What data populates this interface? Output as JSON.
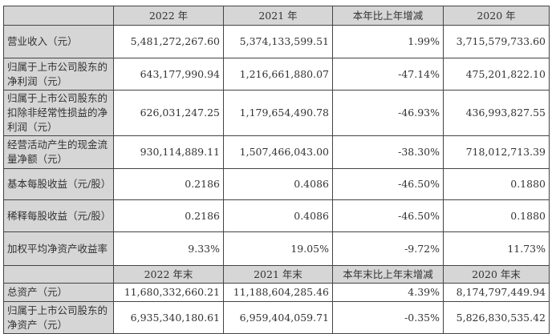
{
  "header1": [
    "",
    "2022 年",
    "2021 年",
    "本年比上年增减",
    "2020 年"
  ],
  "rows1": [
    {
      "label": "营业收入（元）",
      "values": [
        "5,481,272,267.60",
        "5,374,133,599.51",
        "1.99%",
        "3,715,579,733.60"
      ]
    },
    {
      "label": "归属于上市公司股东的净利润（元）",
      "values": [
        "643,177,990.94",
        "1,216,661,880.07",
        "-47.14%",
        "475,201,822.10"
      ]
    },
    {
      "label": "归属于上市公司股东的扣除非经常性损益的净利润（元）",
      "values": [
        "626,031,247.25",
        "1,179,654,490.78",
        "-46.93%",
        "436,993,827.55"
      ]
    },
    {
      "label": "经营活动产生的现金流量净额（元）",
      "values": [
        "930,114,889.11",
        "1,507,466,043.00",
        "-38.30%",
        "718,012,713.39"
      ]
    },
    {
      "label": "基本每股收益（元/股）",
      "values": [
        "0.2186",
        "0.4086",
        "-46.50%",
        "0.1880"
      ]
    },
    {
      "label": "稀释每股收益（元/股）",
      "values": [
        "0.2186",
        "0.4086",
        "-46.50%",
        "0.1880"
      ]
    },
    {
      "label": "加权平均净资产收益率",
      "values": [
        "9.33%",
        "19.05%",
        "-9.72%",
        "11.73%"
      ]
    }
  ],
  "header2": [
    "",
    "2022 年末",
    "2021 年末",
    "本年末比上年末增减",
    "2020 年末"
  ],
  "rows2": [
    {
      "label": "总资产（元）",
      "values": [
        "11,680,332,660.21",
        "11,188,604,285.46",
        "4.39%",
        "8,174,797,449.94"
      ]
    },
    {
      "label": "归属于上市公司股东的净资产（元）",
      "values": [
        "6,935,340,180.61",
        "6,959,404,059.71",
        "-0.35%",
        "5,826,830,535.42"
      ]
    }
  ]
}
